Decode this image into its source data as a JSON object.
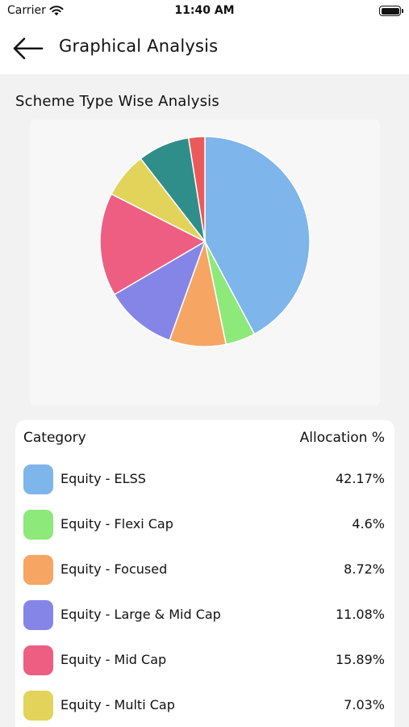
{
  "status_bar": {
    "carrier": "Carrier",
    "time": "11:40 AM"
  },
  "header": {
    "title": "Graphical Analysis"
  },
  "section": {
    "title": "Scheme Type Wise Analysis"
  },
  "table": {
    "col_category": "Category",
    "col_allocation": "Allocation %",
    "rows": [
      {
        "label": "Equity - ELSS",
        "value": "42.17%",
        "color": "#7eb5ea"
      },
      {
        "label": "Equity - Flexi Cap",
        "value": "4.6%",
        "color": "#8ce97a"
      },
      {
        "label": "Equity - Focused",
        "value": "8.72%",
        "color": "#f6a563"
      },
      {
        "label": "Equity - Large & Mid Cap",
        "value": "11.08%",
        "color": "#8585e8"
      },
      {
        "label": "Equity - Mid Cap",
        "value": "15.89%",
        "color": "#ee5e82"
      },
      {
        "label": "Equity - Multi Cap",
        "value": "7.03%",
        "color": "#e2d45a"
      }
    ]
  },
  "chart_data": {
    "type": "pie",
    "categories": [
      "Equity - ELSS",
      "Equity - Flexi Cap",
      "Equity - Focused",
      "Equity - Large & Mid Cap",
      "Equity - Mid Cap",
      "Equity - Multi Cap",
      "",
      ""
    ],
    "values": [
      42.17,
      4.6,
      8.72,
      11.08,
      15.89,
      7.03,
      8.0,
      2.5
    ],
    "colors": [
      "#7eb5ea",
      "#8ce97a",
      "#f6a563",
      "#8585e8",
      "#ee5e82",
      "#e2d45a",
      "#2f8e8a",
      "#eb5a5a"
    ],
    "title": "Scheme Type Wise Analysis"
  }
}
